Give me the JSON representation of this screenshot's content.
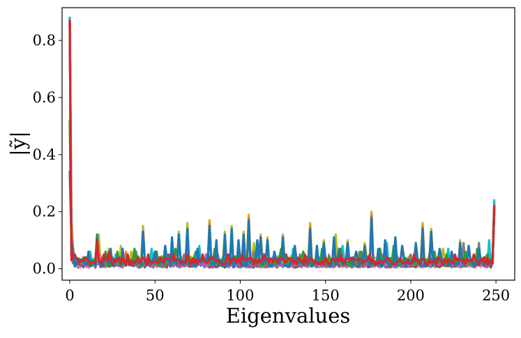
{
  "chart_data": {
    "type": "line",
    "title": "",
    "xlabel": "Eigenvalues",
    "ylabel": "|ỹ|",
    "xlim": [
      -4.5,
      261
    ],
    "ylim": [
      -0.04,
      0.915
    ],
    "x_ticks": [
      0,
      50,
      100,
      150,
      200,
      250
    ],
    "x_tick_labels": [
      "0",
      "50",
      "100",
      "150",
      "200",
      "250"
    ],
    "y_ticks": [
      0.0,
      0.2,
      0.4,
      0.6,
      0.8
    ],
    "y_tick_labels": [
      "0.0",
      "0.2",
      "0.4",
      "0.6",
      "0.8"
    ],
    "grid": false,
    "legend": "none",
    "n_points": 250,
    "series": [
      {
        "color": "#bcbd22",
        "start": [
          0.88,
          0.17,
          0.07
        ],
        "end": [
          0.23,
          0.03
        ],
        "base": 0.03,
        "noise": 0.03,
        "peaks": [
          [
            17,
            0.12
          ],
          [
            23,
            0.07
          ],
          [
            30,
            0.08
          ],
          [
            36,
            0.06
          ],
          [
            43,
            0.15
          ],
          [
            56,
            0.08
          ],
          [
            64,
            0.13
          ],
          [
            69,
            0.16
          ],
          [
            82,
            0.17
          ],
          [
            91,
            0.13
          ],
          [
            95,
            0.15
          ],
          [
            102,
            0.13
          ],
          [
            105,
            0.19
          ],
          [
            108,
            0.09
          ],
          [
            112,
            0.12
          ],
          [
            116,
            0.11
          ],
          [
            125,
            0.12
          ],
          [
            141,
            0.16
          ],
          [
            149,
            0.1
          ],
          [
            156,
            0.12
          ],
          [
            163,
            0.1
          ],
          [
            173,
            0.09
          ],
          [
            177,
            0.2
          ],
          [
            191,
            0.11
          ],
          [
            195,
            0.08
          ],
          [
            207,
            0.16
          ],
          [
            212,
            0.14
          ],
          [
            219,
            0.07
          ],
          [
            229,
            0.1
          ],
          [
            234,
            0.08
          ]
        ]
      },
      {
        "color": "#ff7f0e",
        "start": [
          0.87,
          0.13,
          0.05
        ],
        "end": [
          0.23,
          0.02
        ],
        "base": 0.025,
        "noise": 0.025,
        "peaks": [
          [
            16,
            0.1
          ],
          [
            33,
            0.06
          ],
          [
            43,
            0.13
          ],
          [
            64,
            0.12
          ],
          [
            82,
            0.16
          ],
          [
            105,
            0.18
          ],
          [
            125,
            0.11
          ],
          [
            141,
            0.15
          ],
          [
            163,
            0.09
          ],
          [
            177,
            0.19
          ],
          [
            207,
            0.15
          ],
          [
            212,
            0.13
          ]
        ]
      },
      {
        "color": "#17becf",
        "start": [
          0.88,
          0.1,
          0.05
        ],
        "end": [
          0.24,
          0.03
        ],
        "base": 0.02,
        "noise": 0.025,
        "peaks": [
          [
            12,
            0.06
          ],
          [
            27,
            0.05
          ],
          [
            48,
            0.07
          ],
          [
            76,
            0.08
          ],
          [
            99,
            0.09
          ],
          [
            131,
            0.07
          ],
          [
            160,
            0.08
          ],
          [
            186,
            0.09
          ],
          [
            222,
            0.07
          ],
          [
            246,
            0.1
          ]
        ]
      },
      {
        "color": "#7f7f7f",
        "start": [
          0.86,
          0.05,
          0.03
        ],
        "end": [
          0.22,
          0.02
        ],
        "base": 0.015,
        "noise": 0.025,
        "peaks": [
          [
            20,
            0.04
          ],
          [
            39,
            0.06
          ],
          [
            67,
            0.05
          ],
          [
            108,
            0.06
          ],
          [
            135,
            0.05
          ],
          [
            170,
            0.06
          ],
          [
            200,
            0.05
          ],
          [
            231,
            0.09
          ],
          [
            240,
            0.09
          ]
        ]
      },
      {
        "color": "#e377c2",
        "start": [
          0.87,
          0.04,
          0.02
        ],
        "end": [
          0.2,
          0.02
        ],
        "base": 0.012,
        "noise": 0.018,
        "peaks": [
          [
            18,
            0.05
          ],
          [
            44,
            0.04
          ],
          [
            87,
            0.05
          ],
          [
            119,
            0.04
          ],
          [
            152,
            0.05
          ],
          [
            196,
            0.04
          ],
          [
            226,
            0.04
          ]
        ]
      },
      {
        "color": "#8c564b",
        "start": [
          0.86,
          0.05,
          0.02
        ],
        "end": [
          0.2,
          0.02
        ],
        "base": 0.012,
        "noise": 0.018,
        "peaks": [
          [
            25,
            0.04
          ],
          [
            58,
            0.05
          ],
          [
            94,
            0.04
          ],
          [
            127,
            0.05
          ],
          [
            166,
            0.04
          ],
          [
            211,
            0.05
          ]
        ]
      },
      {
        "color": "#9467bd",
        "start": [
          0.86,
          0.05,
          0.03
        ],
        "end": [
          0.21,
          0.02
        ],
        "base": 0.014,
        "noise": 0.02,
        "peaks": [
          [
            22,
            0.05
          ],
          [
            52,
            0.04
          ],
          [
            80,
            0.05
          ],
          [
            113,
            0.05
          ],
          [
            146,
            0.04
          ],
          [
            183,
            0.05
          ],
          [
            218,
            0.04
          ]
        ]
      },
      {
        "color": "#2ca02c",
        "start": [
          0.52,
          0.06,
          0.04
        ],
        "end": [
          0.22,
          0.03
        ],
        "base": 0.025,
        "noise": 0.035,
        "peaks": [
          [
            16,
            0.12
          ],
          [
            21,
            0.06
          ],
          [
            28,
            0.06
          ],
          [
            38,
            0.07
          ],
          [
            51,
            0.06
          ],
          [
            62,
            0.07
          ],
          [
            74,
            0.06
          ],
          [
            85,
            0.07
          ],
          [
            99,
            0.06
          ],
          [
            110,
            0.08
          ],
          [
            124,
            0.07
          ],
          [
            137,
            0.06
          ],
          [
            148,
            0.07
          ],
          [
            159,
            0.07
          ],
          [
            171,
            0.06
          ],
          [
            182,
            0.07
          ],
          [
            190,
            0.08
          ],
          [
            203,
            0.07
          ],
          [
            214,
            0.06
          ],
          [
            221,
            0.05
          ],
          [
            232,
            0.06
          ],
          [
            239,
            0.07
          ],
          [
            245,
            0.05
          ]
        ]
      },
      {
        "color": "#1f77b4",
        "start": [
          0.34,
          0.1,
          0.06
        ],
        "end": [
          0.2,
          0.02
        ],
        "base": 0.02,
        "noise": 0.03,
        "peaks": [
          [
            11,
            0.06
          ],
          [
            16,
            0.11
          ],
          [
            24,
            0.07
          ],
          [
            31,
            0.07
          ],
          [
            43,
            0.13
          ],
          [
            50,
            0.06
          ],
          [
            56,
            0.08
          ],
          [
            60,
            0.11
          ],
          [
            64,
            0.12
          ],
          [
            69,
            0.14
          ],
          [
            75,
            0.07
          ],
          [
            82,
            0.15
          ],
          [
            86,
            0.1
          ],
          [
            91,
            0.12
          ],
          [
            95,
            0.14
          ],
          [
            99,
            0.1
          ],
          [
            102,
            0.12
          ],
          [
            105,
            0.17
          ],
          [
            110,
            0.1
          ],
          [
            112,
            0.11
          ],
          [
            116,
            0.1
          ],
          [
            120,
            0.06
          ],
          [
            125,
            0.11
          ],
          [
            132,
            0.08
          ],
          [
            141,
            0.14
          ],
          [
            145,
            0.08
          ],
          [
            149,
            0.09
          ],
          [
            155,
            0.11
          ],
          [
            158,
            0.07
          ],
          [
            163,
            0.09
          ],
          [
            168,
            0.06
          ],
          [
            173,
            0.08
          ],
          [
            177,
            0.18
          ],
          [
            181,
            0.07
          ],
          [
            185,
            0.1
          ],
          [
            191,
            0.11
          ],
          [
            195,
            0.08
          ],
          [
            203,
            0.09
          ],
          [
            207,
            0.14
          ],
          [
            212,
            0.13
          ],
          [
            217,
            0.07
          ],
          [
            224,
            0.06
          ],
          [
            229,
            0.09
          ],
          [
            234,
            0.08
          ],
          [
            240,
            0.07
          ]
        ]
      },
      {
        "color": "#d62728",
        "start": [
          0.87,
          0.03,
          0.05
        ],
        "end": [
          0.22,
          0.02
        ],
        "base": 0.025,
        "noise": 0.025,
        "peaks": [
          [
            3,
            0.05
          ],
          [
            9,
            0.04
          ],
          [
            16,
            0.1
          ],
          [
            20,
            0.05
          ],
          [
            23,
            0.06
          ],
          [
            29,
            0.04
          ],
          [
            34,
            0.05
          ],
          [
            40,
            0.04
          ],
          [
            46,
            0.05
          ],
          [
            53,
            0.04
          ],
          [
            61,
            0.05
          ],
          [
            69,
            0.05
          ],
          [
            78,
            0.05
          ],
          [
            84,
            0.04
          ],
          [
            93,
            0.05
          ],
          [
            101,
            0.05
          ],
          [
            106,
            0.04
          ],
          [
            114,
            0.05
          ],
          [
            124,
            0.04
          ],
          [
            138,
            0.05
          ],
          [
            150,
            0.04
          ],
          [
            159,
            0.05
          ],
          [
            176,
            0.05
          ],
          [
            186,
            0.04
          ],
          [
            202,
            0.05
          ],
          [
            216,
            0.04
          ],
          [
            226,
            0.05
          ],
          [
            237,
            0.05
          ],
          [
            243,
            0.04
          ]
        ]
      }
    ]
  }
}
